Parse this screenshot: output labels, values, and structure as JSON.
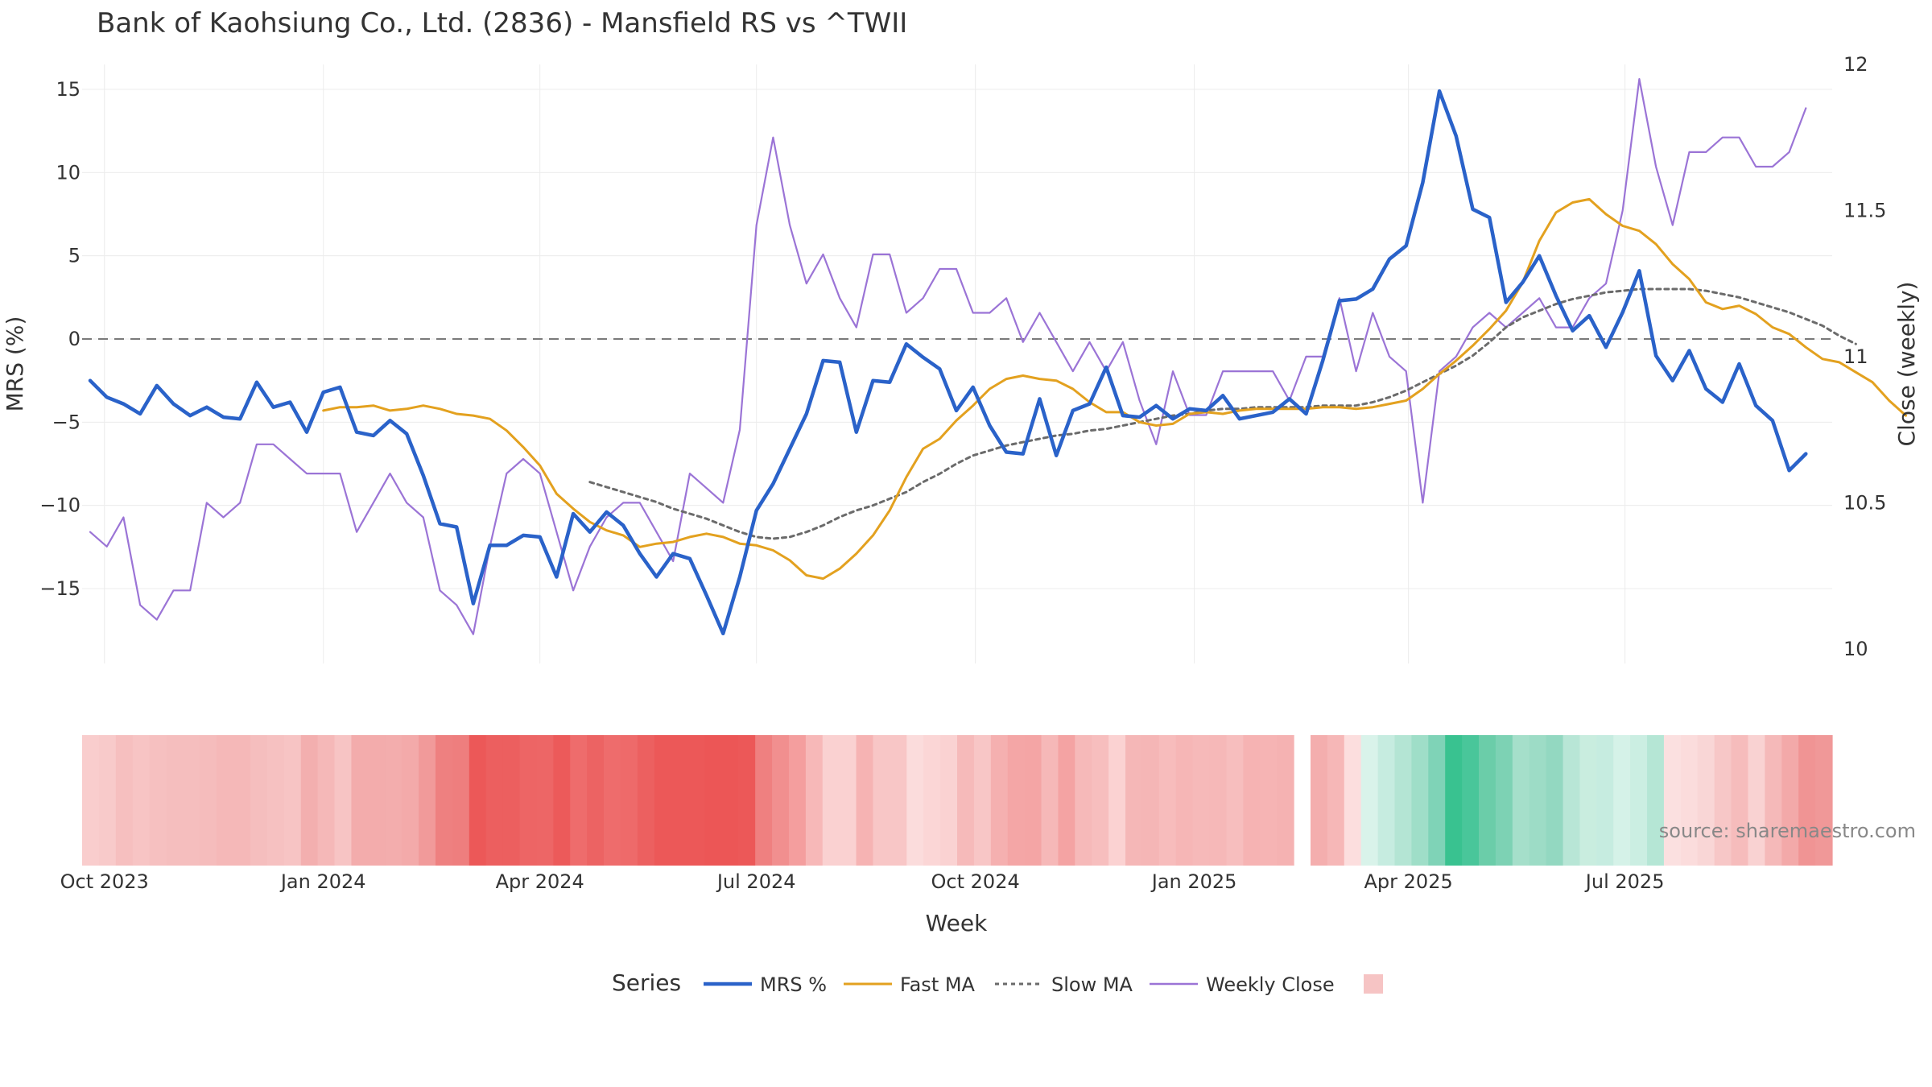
{
  "chart_data": {
    "type": "line",
    "title": "Bank of Kaohsiung Co., Ltd. (2836) - Mansfield RS vs ^TWII",
    "xlabel": "Week",
    "ylabel": "MRS (%)",
    "y2label": "Close (weekly)",
    "source": "source: sharemaestro.com",
    "legend_title": "Series",
    "legend_position": "bottom",
    "grid": true,
    "zero_line": 0,
    "x_start": "2023-09-25",
    "x_end": "2025-09-22",
    "x_ticks": [
      {
        "date": "2023-10-01",
        "label": "Oct 2023"
      },
      {
        "date": "2024-01-01",
        "label": "Jan 2024"
      },
      {
        "date": "2024-04-01",
        "label": "Apr 2024"
      },
      {
        "date": "2024-07-01",
        "label": "Jul 2024"
      },
      {
        "date": "2024-10-01",
        "label": "Oct 2024"
      },
      {
        "date": "2025-01-01",
        "label": "Jan 2025"
      },
      {
        "date": "2025-04-01",
        "label": "Apr 2025"
      },
      {
        "date": "2025-07-01",
        "label": "Jul 2025"
      }
    ],
    "ylim": [
      -19.5,
      16.5
    ],
    "y_ticks": [
      15,
      10,
      5,
      0,
      -5,
      -10,
      -15
    ],
    "y_tick_labels": [
      "15",
      "10",
      "5",
      "0",
      "−5",
      "−10",
      "−15"
    ],
    "y2lim": [
      9.95,
      12.0
    ],
    "y2_ticks": [
      10,
      10.5,
      11,
      11.5,
      12
    ],
    "y2_tick_labels": [
      "10",
      "10.5",
      "11",
      "11.5",
      "12"
    ],
    "gap": {
      "start": "2025-01-26",
      "end": "2025-02-02"
    },
    "series": [
      {
        "name": "MRS %",
        "color": "#2a62c9",
        "style": "solid",
        "axis": "left",
        "start": "2023-09-25",
        "values": [
          -2.5,
          -3.5,
          -3.9,
          -4.5,
          -2.8,
          -3.9,
          -4.6,
          -4.1,
          -4.7,
          -4.8,
          -2.6,
          -4.1,
          -3.8,
          -5.6,
          -3.2,
          -2.9,
          -5.6,
          -5.8,
          -4.9,
          -5.7,
          -8.2,
          -11.1,
          -11.3,
          -15.9,
          -12.4,
          -12.4,
          -11.8,
          -11.9,
          -14.3,
          -10.5,
          -11.6,
          -10.4,
          -11.2,
          -12.9,
          -14.3,
          -12.9,
          -13.2,
          -15.4,
          -17.7,
          -14.3,
          -10.3,
          -8.7,
          -6.6,
          -4.5,
          -1.3,
          -1.4,
          -5.6,
          -2.5,
          -2.6,
          -0.3,
          -1.1,
          -1.8,
          -4.3,
          -2.9,
          -5.2,
          -6.8,
          -6.9,
          -3.6,
          -7.0,
          -4.3,
          -3.9,
          -1.7,
          -4.6,
          -4.7,
          -4.0,
          -4.8,
          -4.2,
          -4.3,
          -3.4,
          -4.8,
          -4.6,
          -4.4,
          -3.6,
          -4.5,
          -1.3,
          2.3,
          2.4,
          3.0,
          4.8,
          5.6,
          9.4,
          14.9,
          12.2,
          7.8,
          7.3,
          2.2,
          3.4,
          5.0,
          2.6,
          0.5,
          1.4,
          -0.5,
          1.6,
          4.1,
          -1.0,
          -2.5,
          -0.7,
          -3.0,
          -3.8,
          -1.5,
          -4.0,
          -4.9,
          -7.9,
          -6.9
        ]
      },
      {
        "name": "Fast MA",
        "color": "#e3a11f",
        "style": "solid",
        "axis": "left",
        "start": "2024-01-01",
        "values": [
          -4.3,
          -4.1,
          -4.1,
          -4.0,
          -4.3,
          -4.2,
          -4.0,
          -4.2,
          -4.5,
          -4.6,
          -4.8,
          -5.5,
          -6.5,
          -7.6,
          -9.3,
          -10.2,
          -11.0,
          -11.5,
          -11.8,
          -12.5,
          -12.3,
          -12.2,
          -11.9,
          -11.7,
          -11.9,
          -12.3,
          -12.4,
          -12.7,
          -13.3,
          -14.2,
          -14.4,
          -13.8,
          -12.9,
          -11.8,
          -10.3,
          -8.3,
          -6.6,
          -6.0,
          -4.9,
          -4.0,
          -3.0,
          -2.4,
          -2.2,
          -2.4,
          -2.5,
          -3.0,
          -3.8,
          -4.4,
          -4.4,
          -5.0,
          -5.2,
          -5.1,
          -4.5,
          -4.4,
          -4.5,
          -4.3,
          -4.2,
          -4.2,
          -4.2,
          -4.2,
          -4.1,
          -4.1,
          -4.2,
          -4.1,
          -3.9,
          -3.7,
          -3.0,
          -2.1,
          -1.3,
          -0.4,
          0.6,
          1.7,
          3.4,
          5.9,
          7.6,
          8.2,
          8.4,
          7.5,
          6.8,
          6.5,
          5.7,
          4.5,
          3.6,
          2.2,
          1.8,
          2.0,
          1.5,
          0.7,
          0.3,
          -0.5,
          -1.2,
          -1.4,
          -2.0,
          -2.6,
          -3.7,
          -4.6
        ]
      },
      {
        "name": "Slow MA",
        "color": "#6b6b6b",
        "style": "dashed",
        "axis": "left",
        "start": "2024-04-22",
        "values": [
          -8.6,
          -8.9,
          -9.2,
          -9.5,
          -9.8,
          -10.2,
          -10.5,
          -10.8,
          -11.2,
          -11.6,
          -11.9,
          -12.0,
          -11.9,
          -11.6,
          -11.2,
          -10.7,
          -10.3,
          -10.0,
          -9.6,
          -9.2,
          -8.6,
          -8.1,
          -7.5,
          -7.0,
          -6.7,
          -6.4,
          -6.2,
          -6.0,
          -5.8,
          -5.7,
          -5.5,
          -5.4,
          -5.2,
          -5.0,
          -4.8,
          -4.6,
          -4.5,
          -4.3,
          -4.2,
          -4.2,
          -4.1,
          -4.1,
          -4.1,
          -4.1,
          -4.0,
          -4.0,
          -4.0,
          -3.8,
          -3.5,
          -3.1,
          -2.6,
          -2.1,
          -1.6,
          -1.0,
          -0.2,
          0.7,
          1.3,
          1.7,
          2.1,
          2.4,
          2.6,
          2.8,
          2.9,
          3.0,
          3.0,
          3.0,
          3.0,
          2.9,
          2.7,
          2.5,
          2.2,
          1.9,
          1.6,
          1.2,
          0.8,
          0.2,
          -0.3
        ]
      },
      {
        "name": "Weekly Close",
        "color": "#9b74d6",
        "style": "solid",
        "axis": "right",
        "start": "2023-09-25",
        "values": [
          10.4,
          10.35,
          10.45,
          10.15,
          10.1,
          10.2,
          10.2,
          10.5,
          10.45,
          10.5,
          10.7,
          10.7,
          10.65,
          10.6,
          10.6,
          10.6,
          10.4,
          10.5,
          10.6,
          10.5,
          10.45,
          10.2,
          10.15,
          10.05,
          10.35,
          10.6,
          10.65,
          10.6,
          10.4,
          10.2,
          10.35,
          10.45,
          10.5,
          10.5,
          10.4,
          10.3,
          10.6,
          10.55,
          10.5,
          10.75,
          11.45,
          11.75,
          11.45,
          11.25,
          11.35,
          11.2,
          11.1,
          11.35,
          11.35,
          11.15,
          11.2,
          11.3,
          11.3,
          11.15,
          11.15,
          11.2,
          11.05,
          11.15,
          11.05,
          10.95,
          11.05,
          10.95,
          11.05,
          10.85,
          10.7,
          10.95,
          10.8,
          10.8,
          10.95,
          10.95,
          10.95,
          10.95,
          10.85,
          11.0,
          11.0,
          11.2,
          10.95,
          11.15,
          11.0,
          10.95,
          10.5,
          10.95,
          11.0,
          11.1,
          11.15,
          11.1,
          11.15,
          11.2,
          11.1,
          11.1,
          11.2,
          11.25,
          11.5,
          11.95,
          11.65,
          11.45,
          11.7,
          11.7,
          11.75,
          11.75,
          11.65,
          11.65,
          11.7,
          11.85
        ]
      }
    ],
    "heatmap": {
      "description": "weekly MRS strength strip",
      "colors": [
        "#f9cdcd",
        "#f8caca",
        "#f6bfbf",
        "#f7c4c4",
        "#f6c0c0",
        "#f5bebe",
        "#f5bebe",
        "#f5bcbc",
        "#f5b8b8",
        "#f5b8b8",
        "#f5bebe",
        "#f6c1c1",
        "#f7c4c4",
        "#f3afaf",
        "#f5b8b8",
        "#f7c4c4",
        "#f3acac",
        "#f3acac",
        "#f3adad",
        "#f3aaaa",
        "#f19a9a",
        "#ee8080",
        "#ee7e7e",
        "#ec5858",
        "#ec5f5f",
        "#ec5f5f",
        "#ed6565",
        "#ed6666",
        "#ec5a5a",
        "#ee6c6c",
        "#ec6363",
        "#ee6c6c",
        "#ee6a6a",
        "#ec6060",
        "#ec5858",
        "#ec5858",
        "#ec5858",
        "#ec5656",
        "#ec5656",
        "#ec5858",
        "#ef8080",
        "#f18f8f",
        "#f49e9e",
        "#f7b8b8",
        "#fad1d1",
        "#fad1d1",
        "#f6b3b3",
        "#f8c6c6",
        "#f8c6c6",
        "#fbdcdc",
        "#fbd6d6",
        "#fad2d2",
        "#f6baba",
        "#f8c6c6",
        "#f5b0b0",
        "#f4a6a6",
        "#f4a5a5",
        "#f6b8b8",
        "#f4a3a3",
        "#f6b9b9",
        "#f7bebe",
        "#fbd2d2",
        "#f5b7b7",
        "#f5b6b6",
        "#f7bcbc",
        "#f6b6b6",
        "#f6b9b9",
        "#f6b8b8",
        "#f7bebe",
        "#f6b3b3",
        "#f6b4b4",
        "#f5b2b2",
        null,
        "#f4aeae",
        "#f6b7b7",
        "#fcdede",
        "#d9f3ea",
        "#c6ece0",
        "#b4e5d4",
        "#9fdec8",
        "#7fd3b7",
        "#39c290",
        "#49c69a",
        "#6bcda9",
        "#7dd2b4",
        "#a5dfca",
        "#9ddcc6",
        "#93d8c1",
        "#b8e6d6",
        "#c9eddf",
        "#c6ece0",
        "#d5f2e8",
        "#cbeee2",
        "#b5e6d5",
        "#fbe0e0",
        "#fbdcdc",
        "#f9d6d6",
        "#f7c7c7",
        "#f6bcbc",
        "#f9d2d2",
        "#f5b9b9",
        "#f3a9a9",
        "#f09494",
        "#f09898"
      ]
    },
    "legend": [
      {
        "label": "MRS %"
      },
      {
        "label": "Fast MA"
      },
      {
        "label": "Slow MA"
      },
      {
        "label": "Weekly Close"
      },
      {
        "label": ""
      }
    ]
  }
}
